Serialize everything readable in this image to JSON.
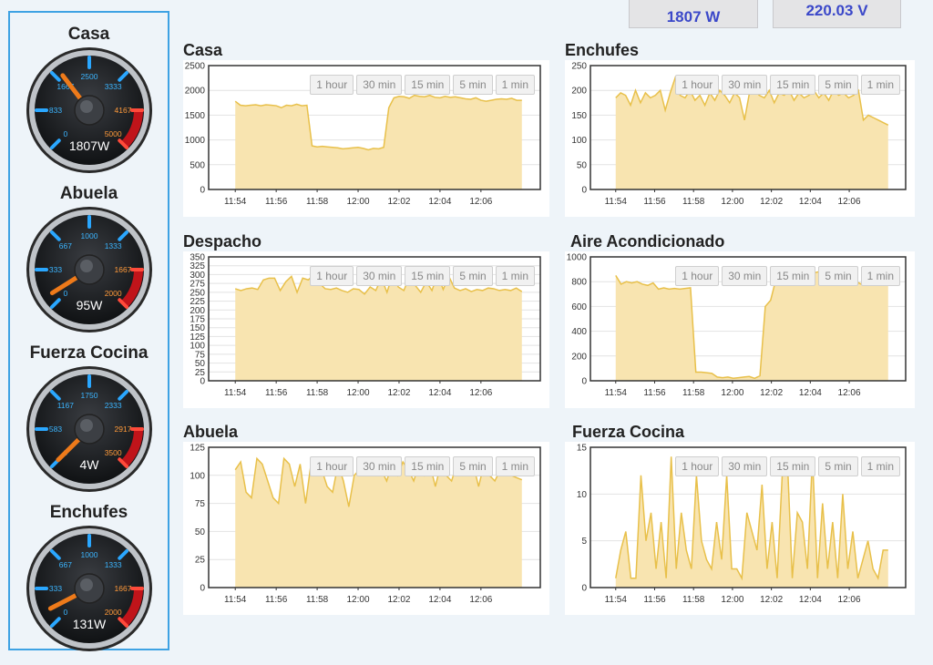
{
  "header": {
    "power_label": "1807 W",
    "voltage_label": "220.03 V"
  },
  "gauges": [
    {
      "title": "Casa",
      "max": 5000,
      "value": 1807,
      "display": "1807W",
      "ticks": [
        "0",
        "833",
        "1667",
        "2500",
        "3333",
        "4167",
        "5000"
      ]
    },
    {
      "title": "Abuela",
      "max": 2000,
      "value": 95,
      "display": "95W",
      "ticks": [
        "0",
        "333",
        "667",
        "1000",
        "1333",
        "1667",
        "2000"
      ]
    },
    {
      "title": "Fuerza Cocina",
      "max": 3500,
      "value": 4,
      "display": "4W",
      "ticks": [
        "0",
        "583",
        "1167",
        "1750",
        "2333",
        "2917",
        "3500"
      ]
    },
    {
      "title": "Enchufes",
      "max": 2000,
      "value": 131,
      "display": "131W",
      "ticks": [
        "0",
        "333",
        "667",
        "1000",
        "1333",
        "1667",
        "2000"
      ]
    }
  ],
  "zoom_buttons": [
    "1 hour",
    "30 min",
    "15 min",
    "5 min",
    "1 min"
  ],
  "colors": {
    "fill": "#f8e4b0",
    "line": "#e8c04a",
    "accent": "#3b48c9",
    "sidebar_border": "#3ea2e3"
  },
  "chart_data": [
    {
      "type": "area",
      "title": "Casa",
      "x_ticks": [
        "11:54",
        "11:56",
        "11:58",
        "12:00",
        "12:02",
        "12:04",
        "12:06"
      ],
      "y_ticks": [
        "0",
        "500",
        "1000",
        "1500",
        "2000",
        "2500"
      ],
      "ylim": [
        0,
        2500
      ],
      "x_range_minutes": [
        -14,
        0
      ],
      "values": [
        1780,
        1700,
        1690,
        1700,
        1710,
        1690,
        1710,
        1700,
        1690,
        1650,
        1700,
        1690,
        1720,
        1690,
        1700,
        880,
        860,
        870,
        860,
        850,
        840,
        820,
        830,
        840,
        850,
        830,
        800,
        830,
        820,
        850,
        1650,
        1850,
        1880,
        1870,
        1840,
        1900,
        1880,
        1870,
        1900,
        1860,
        1850,
        1880,
        1860,
        1870,
        1850,
        1830,
        1820,
        1850,
        1800,
        1780,
        1800,
        1820,
        1830,
        1820,
        1840,
        1800,
        1800
      ]
    },
    {
      "type": "area",
      "title": "Enchufes",
      "x_ticks": [
        "11:54",
        "11:56",
        "11:58",
        "12:00",
        "12:02",
        "12:04",
        "12:06"
      ],
      "y_ticks": [
        "0",
        "50",
        "100",
        "150",
        "200",
        "250"
      ],
      "ylim": [
        0,
        250
      ],
      "x_range_minutes": [
        -14,
        0
      ],
      "values": [
        185,
        195,
        190,
        170,
        200,
        175,
        195,
        185,
        190,
        200,
        160,
        195,
        225,
        190,
        185,
        200,
        180,
        190,
        170,
        195,
        180,
        200,
        190,
        175,
        195,
        185,
        140,
        195,
        200,
        190,
        185,
        200,
        175,
        195,
        190,
        200,
        180,
        195,
        185,
        190,
        200,
        185,
        195,
        180,
        200,
        190,
        195,
        185,
        190,
        200,
        140,
        150,
        145,
        140,
        135,
        130
      ]
    },
    {
      "type": "area",
      "title": "Despacho",
      "x_ticks": [
        "11:54",
        "11:56",
        "11:58",
        "12:00",
        "12:02",
        "12:04",
        "12:06"
      ],
      "y_ticks": [
        "0",
        "25",
        "50",
        "75",
        "100",
        "125",
        "150",
        "175",
        "200",
        "225",
        "250",
        "275",
        "300",
        "325",
        "350"
      ],
      "ylim": [
        0,
        350
      ],
      "x_range_minutes": [
        -14,
        0
      ],
      "values": [
        260,
        255,
        260,
        262,
        258,
        285,
        290,
        290,
        255,
        280,
        295,
        250,
        290,
        285,
        300,
        275,
        260,
        258,
        262,
        255,
        250,
        260,
        258,
        245,
        265,
        255,
        290,
        250,
        300,
        265,
        255,
        295,
        270,
        250,
        280,
        255,
        300,
        258,
        295,
        262,
        255,
        260,
        252,
        258,
        255,
        262,
        260,
        255,
        258,
        255,
        262,
        252
      ]
    },
    {
      "type": "area",
      "title": "Aire Acondicionado",
      "x_ticks": [
        "11:54",
        "11:56",
        "11:58",
        "12:00",
        "12:02",
        "12:04",
        "12:06"
      ],
      "y_ticks": [
        "0",
        "200",
        "400",
        "600",
        "800",
        "1000"
      ],
      "ylim": [
        0,
        1000
      ],
      "x_range_minutes": [
        -14,
        0
      ],
      "values": [
        850,
        780,
        800,
        790,
        800,
        780,
        770,
        790,
        740,
        750,
        740,
        745,
        740,
        745,
        750,
        70,
        70,
        65,
        60,
        30,
        25,
        30,
        20,
        25,
        30,
        35,
        20,
        40,
        600,
        650,
        820,
        880,
        900,
        870,
        880,
        910,
        900,
        870,
        880,
        890,
        860,
        850,
        840,
        820,
        810,
        800,
        780,
        790,
        780,
        785,
        780,
        780
      ]
    },
    {
      "type": "area",
      "title": "Abuela",
      "x_ticks": [
        "11:54",
        "11:56",
        "11:58",
        "12:00",
        "12:02",
        "12:04",
        "12:06"
      ],
      "y_ticks": [
        "0",
        "25",
        "50",
        "75",
        "100",
        "125"
      ],
      "ylim": [
        0,
        125
      ],
      "x_range_minutes": [
        -14,
        0
      ],
      "values": [
        105,
        112,
        85,
        80,
        115,
        110,
        95,
        80,
        75,
        115,
        110,
        90,
        110,
        75,
        110,
        100,
        105,
        90,
        85,
        110,
        95,
        72,
        100,
        105,
        110,
        112,
        100,
        105,
        95,
        110,
        100,
        112,
        105,
        95,
        110,
        100,
        110,
        90,
        110,
        100,
        95,
        110,
        100,
        105,
        110,
        90,
        110,
        100,
        95,
        105,
        110,
        100,
        98,
        96
      ]
    },
    {
      "type": "area",
      "title": "Fuerza Cocina",
      "x_ticks": [
        "11:54",
        "11:56",
        "11:58",
        "12:00",
        "12:02",
        "12:04",
        "12:06"
      ],
      "y_ticks": [
        "0",
        "5",
        "10",
        "15"
      ],
      "ylim": [
        0,
        15
      ],
      "x_range_minutes": [
        -14,
        0
      ],
      "values": [
        1,
        4,
        6,
        1,
        1,
        12,
        5,
        8,
        2,
        7,
        1,
        14,
        2,
        8,
        4,
        2,
        12,
        5,
        3,
        2,
        7,
        3,
        12,
        2,
        2,
        1,
        8,
        6,
        4,
        11,
        2,
        7,
        1,
        12,
        14,
        1,
        8,
        7,
        2,
        14,
        1,
        9,
        2,
        7,
        1,
        10,
        2,
        6,
        1,
        3,
        5,
        2,
        1,
        4,
        4
      ]
    }
  ]
}
